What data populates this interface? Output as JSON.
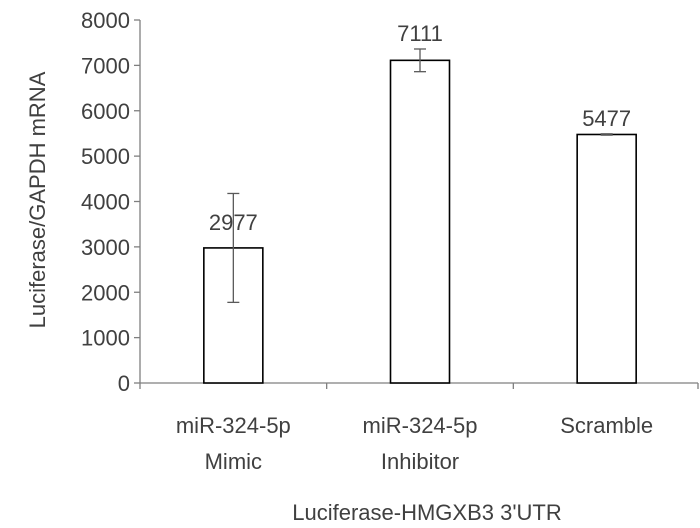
{
  "chart_data": {
    "type": "bar",
    "categories": [
      [
        "miR-324-5p",
        "Mimic"
      ],
      [
        "miR-324-5p",
        "Inhibitor"
      ],
      [
        "Scramble"
      ]
    ],
    "values": [
      2977,
      7111,
      5477
    ],
    "error": [
      1200,
      250,
      15
    ],
    "data_labels": [
      "2977",
      "7111",
      "5477"
    ],
    "ylabel": "Luciferase/GAPDH mRNA",
    "xlabel": "Luciferase-HMGXB3 3'UTR",
    "ylim": [
      0,
      8000
    ],
    "yticks": [
      0,
      1000,
      2000,
      3000,
      4000,
      5000,
      6000,
      7000,
      8000
    ],
    "grid": false,
    "legend": "none",
    "colors": {
      "bar_fill": "#ffffff",
      "bar_stroke": "#000000",
      "axis": "#7f7f7f",
      "text": "#404040"
    }
  }
}
